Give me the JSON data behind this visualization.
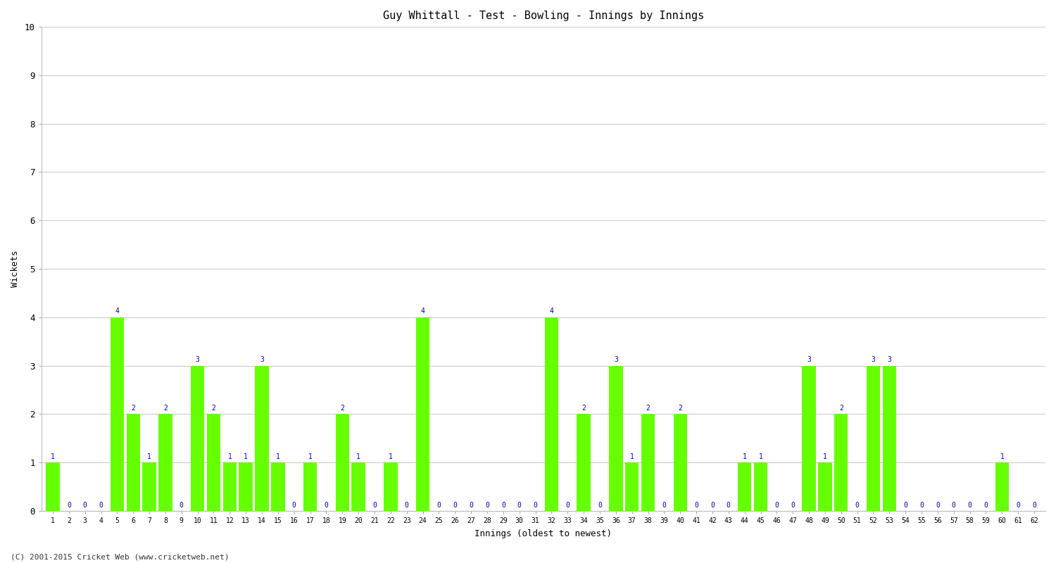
{
  "title": "Guy Whittall - Test - Bowling - Innings by Innings",
  "xlabel": "Innings (oldest to newest)",
  "ylabel": "Wickets",
  "footer": "(C) 2001-2015 Cricket Web (www.cricketweb.net)",
  "ylim": [
    0,
    10
  ],
  "yticks": [
    0,
    1,
    2,
    3,
    4,
    5,
    6,
    7,
    8,
    9,
    10
  ],
  "bar_color": "#66ff00",
  "bar_edge_color": "#44cc00",
  "label_color": "#0000aa",
  "background_color": "#ffffff",
  "grid_color": "#cccccc",
  "innings_labels": [
    "1",
    "2",
    "3",
    "4",
    "5",
    "6",
    "7",
    "8",
    "9",
    "10",
    "11",
    "12",
    "13",
    "14",
    "15",
    "16",
    "17",
    "18",
    "19",
    "20",
    "21",
    "22",
    "23",
    "24",
    "25",
    "26",
    "27",
    "28",
    "29",
    "30",
    "31",
    "32",
    "33",
    "34",
    "35",
    "36",
    "37",
    "38",
    "39",
    "40",
    "41",
    "42",
    "43",
    "44",
    "45",
    "46",
    "47",
    "48",
    "49",
    "50",
    "51",
    "52",
    "53",
    "54",
    "55",
    "56",
    "57",
    "58",
    "59",
    "60",
    "61",
    "62"
  ],
  "wickets": [
    1,
    0,
    0,
    0,
    4,
    2,
    1,
    2,
    0,
    3,
    2,
    1,
    1,
    3,
    1,
    0,
    1,
    0,
    2,
    1,
    0,
    1,
    0,
    4,
    0,
    0,
    0,
    0,
    0,
    0,
    0,
    4,
    0,
    2,
    0,
    3,
    1,
    2,
    0,
    2,
    0,
    0,
    0,
    1,
    1,
    0,
    0,
    3,
    1,
    2,
    0,
    3,
    3,
    0,
    0,
    0,
    0,
    0,
    0,
    1,
    0,
    0
  ]
}
